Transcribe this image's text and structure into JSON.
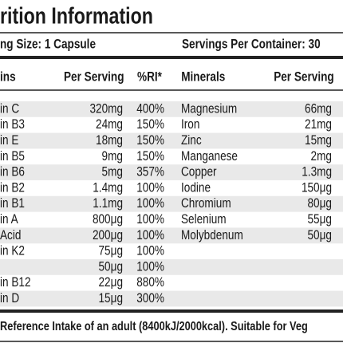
{
  "header": {
    "title": "rition Information",
    "serving_size": "ng Size: 1 Capsule",
    "servings_per_container": "Servings Per Container: 30"
  },
  "table": {
    "columns": [
      "ins",
      "Per Serving",
      "%RI*",
      "Minerals",
      "Per Serving"
    ],
    "vitamins": [
      {
        "name": "in C",
        "amount": "320mg",
        "ri": "400%"
      },
      {
        "name": "in B3",
        "amount": "24mg",
        "ri": "150%"
      },
      {
        "name": "in E",
        "amount": "18mg",
        "ri": "150%"
      },
      {
        "name": "in B5",
        "amount": "9mg",
        "ri": "150%"
      },
      {
        "name": "in B6",
        "amount": "5mg",
        "ri": "357%"
      },
      {
        "name": "in B2",
        "amount": "1.4mg",
        "ri": "100%"
      },
      {
        "name": "in B1",
        "amount": "1.1mg",
        "ri": "100%"
      },
      {
        "name": "in A",
        "amount": "800μg",
        "ri": "100%"
      },
      {
        "name": "Acid",
        "amount": "200μg",
        "ri": "100%"
      },
      {
        "name": "in K2",
        "amount": "75μg",
        "ri": "100%"
      },
      {
        "amount": "50μg",
        "ri": "100%"
      },
      {
        "name": "in B12",
        "amount": "22μg",
        "ri": "880%"
      },
      {
        "name": "in D",
        "amount": "15μg",
        "ri": "300%"
      }
    ],
    "minerals": [
      {
        "name": "Magnesium",
        "amount": "66mg"
      },
      {
        "name": "Iron",
        "amount": "21mg"
      },
      {
        "name": "Zinc",
        "amount": "15mg"
      },
      {
        "name": "Manganese",
        "amount": "2mg"
      },
      {
        "name": "Copper",
        "amount": "1.3mg"
      },
      {
        "name": "Iodine",
        "amount": "150μg"
      },
      {
        "name": "Chromium",
        "amount": "80μg"
      },
      {
        "name": "Selenium",
        "amount": "55μg"
      },
      {
        "name": "Molybdenum",
        "amount": "50μg"
      }
    ]
  },
  "footnote": "Reference Intake of an adult (8400kJ/2000kcal). Suitable for Veg"
}
